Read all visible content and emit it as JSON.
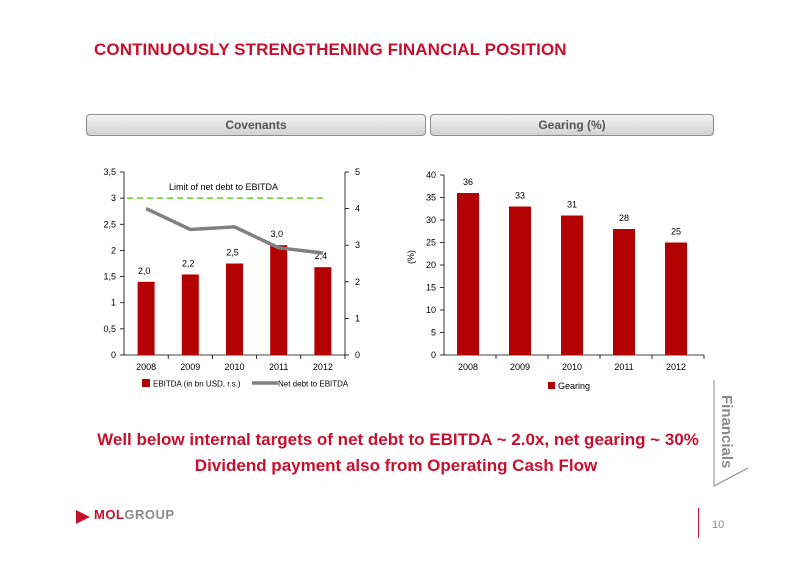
{
  "slide": {
    "title": "CONTINUOUSLY STRENGTHENING FINANCIAL POSITION",
    "left_header": "Covenants",
    "right_header": "Gearing (%)",
    "message_line1": "Well below internal targets of net debt to EBITDA ~ 2.0x,  net gearing ~ 30%",
    "message_line2": "Dividend payment also from Operating Cash Flow",
    "side_label": "Financials",
    "logo_mol": "MOL",
    "logo_group": "GROUP",
    "page_number": "10"
  },
  "colors": {
    "accent_red": "#c8102e",
    "bar_red": "#b30000",
    "line_gray": "#808080",
    "limit_green": "#66cc33",
    "text_gray": "#8a8a8a"
  },
  "chart_data": [
    {
      "type": "bar",
      "categories": [
        "2008",
        "2009",
        "2010",
        "2011",
        "2012"
      ],
      "series": [
        {
          "name": "EBITDA (in bn USD, r.s.)",
          "kind": "bar",
          "axis": "right",
          "values": [
            2.0,
            2.2,
            2.5,
            3.0,
            2.4
          ],
          "labels": [
            "2,0",
            "2,2",
            "2,5",
            "3,0",
            "2,4"
          ]
        },
        {
          "name": "Net debt to EBITDA",
          "kind": "line",
          "axis": "left",
          "values": [
            2.8,
            2.4,
            2.45,
            2.05,
            1.95
          ]
        }
      ],
      "ylim_left": [
        0,
        3.5
      ],
      "yticks_left": [
        "0",
        "0,5",
        "1",
        "1,5",
        "2",
        "2,5",
        "3",
        "3,5"
      ],
      "ylim_right": [
        0,
        5
      ],
      "yticks_right": [
        "0",
        "1",
        "2",
        "3",
        "4",
        "5"
      ],
      "limit_line": {
        "label": "Limit of net debt to EBITDA",
        "value": 3.0,
        "axis": "left"
      },
      "legend_position": "bottom",
      "grid": false
    },
    {
      "type": "bar",
      "categories": [
        "2008",
        "2009",
        "2010",
        "2011",
        "2012"
      ],
      "series": [
        {
          "name": "Gearing",
          "values": [
            36,
            33,
            31,
            28,
            25
          ]
        }
      ],
      "ylabel": "(%)",
      "ylim": [
        0,
        40
      ],
      "yticks": [
        "0",
        "5",
        "10",
        "15",
        "20",
        "25",
        "30",
        "35",
        "40"
      ],
      "legend_position": "bottom",
      "grid": false
    }
  ]
}
